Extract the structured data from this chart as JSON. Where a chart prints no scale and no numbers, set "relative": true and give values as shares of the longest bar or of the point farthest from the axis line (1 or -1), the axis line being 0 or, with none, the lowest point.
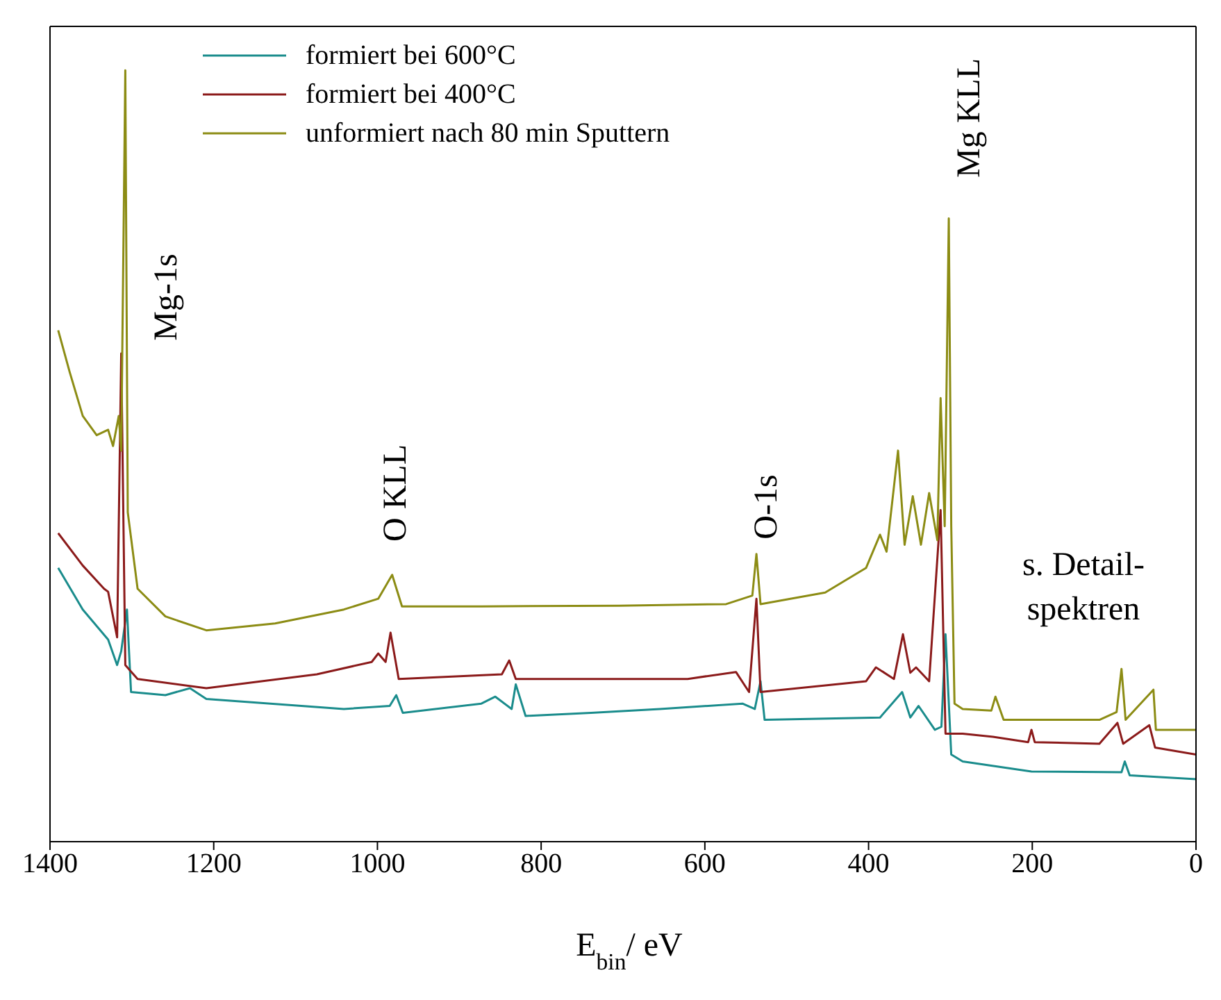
{
  "chart_data": {
    "type": "line",
    "relative": true,
    "xlabel": "E$_{bin}$/ eV",
    "xlim": [
      1400,
      0
    ],
    "xticks": [
      0,
      200,
      400,
      600,
      800,
      1000,
      1200,
      1400
    ],
    "legend": "top left",
    "grid": false,
    "marker": "none",
    "line_style": "solid",
    "series": [
      {
        "name": "formiert bei 600°C",
        "color": "#1a8c8c",
        "x": [
          1390,
          1360,
          1329,
          1318,
          1313,
          1306,
          1301,
          1259,
          1229,
          1209,
          1041,
          985,
          977,
          969,
          873,
          856,
          836,
          831,
          819,
          739,
          655,
          554,
          539,
          532,
          527,
          386,
          359,
          349,
          339,
          319,
          311,
          306,
          299,
          285,
          201,
          91,
          87,
          81,
          0
        ],
        "values": [
          0.355,
          0.301,
          0.262,
          0.229,
          0.247,
          0.301,
          0.194,
          0.19,
          0.199,
          0.185,
          0.172,
          0.176,
          0.19,
          0.167,
          0.179,
          0.188,
          0.172,
          0.204,
          0.163,
          0.167,
          0.172,
          0.179,
          0.172,
          0.208,
          0.158,
          0.161,
          0.194,
          0.161,
          0.176,
          0.145,
          0.149,
          0.269,
          0.113,
          0.104,
          0.091,
          0.09,
          0.104,
          0.086,
          0.081
        ]
      },
      {
        "name": "formiert bei 400°C",
        "color": "#8b1a1a",
        "x": [
          1390,
          1360,
          1334,
          1329,
          1318,
          1313,
          1308,
          1293,
          1209,
          1074,
          1007,
          999,
          990,
          984,
          974,
          848,
          839,
          831,
          621,
          562,
          546,
          537,
          532,
          403,
          391,
          369,
          358,
          349,
          342,
          326,
          312,
          306,
          285,
          248,
          205,
          201,
          197,
          118,
          96,
          89,
          57,
          50,
          0
        ],
        "values": [
          0.4,
          0.358,
          0.328,
          0.324,
          0.265,
          0.633,
          0.229,
          0.211,
          0.199,
          0.217,
          0.233,
          0.244,
          0.233,
          0.271,
          0.211,
          0.217,
          0.235,
          0.211,
          0.211,
          0.22,
          0.194,
          0.315,
          0.194,
          0.208,
          0.226,
          0.211,
          0.269,
          0.219,
          0.226,
          0.208,
          0.43,
          0.14,
          0.14,
          0.136,
          0.129,
          0.145,
          0.129,
          0.127,
          0.154,
          0.127,
          0.151,
          0.122,
          0.113
        ]
      },
      {
        "name": "unformiert nach 80 min Sputtern",
        "color": "#8c8c14",
        "x": [
          1390,
          1376,
          1360,
          1343,
          1329,
          1323,
          1316,
          1313,
          1308,
          1305,
          1293,
          1259,
          1209,
          1125,
          1041,
          999,
          982,
          970,
          873,
          705,
          574,
          542,
          537,
          532,
          453,
          403,
          386,
          378,
          364,
          356,
          346,
          336,
          326,
          316,
          312,
          307,
          302,
          299,
          295,
          285,
          250,
          245,
          235,
          118,
          97,
          91,
          86,
          52,
          49,
          0
        ],
        "values": [
          0.663,
          0.609,
          0.552,
          0.527,
          0.534,
          0.513,
          0.552,
          0.507,
          1.0,
          0.427,
          0.328,
          0.292,
          0.274,
          0.283,
          0.301,
          0.315,
          0.346,
          0.305,
          0.305,
          0.306,
          0.308,
          0.319,
          0.373,
          0.308,
          0.323,
          0.355,
          0.398,
          0.376,
          0.507,
          0.385,
          0.448,
          0.385,
          0.452,
          0.391,
          0.575,
          0.409,
          0.808,
          0.409,
          0.179,
          0.172,
          0.17,
          0.188,
          0.158,
          0.158,
          0.168,
          0.224,
          0.158,
          0.197,
          0.145,
          0.145
        ]
      }
    ],
    "annotations": [
      "Mg-1s",
      "O KLL",
      "O-1s",
      "Mg KLL",
      "s. Detail-\nspektren"
    ]
  }
}
